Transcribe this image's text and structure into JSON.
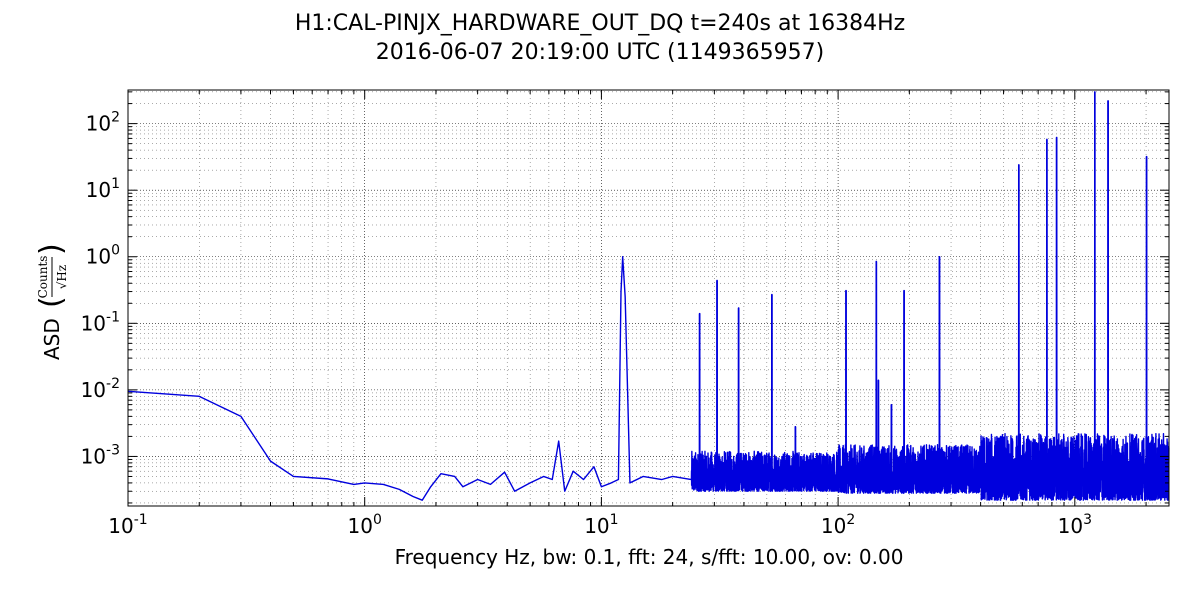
{
  "chart_data": {
    "type": "line",
    "title": "H1:CAL-PINJX_HARDWARE_OUT_DQ t=240s at 16384Hz",
    "subtitle": "2016-06-07 20:19:00 UTC (1149365957)",
    "xlabel": "Frequency Hz,  bw: 0.1, fft: 24, s/fft: 10.00, ov: 0.00",
    "ylabel": "ASD",
    "ylabel_unit_numerator": "Counts",
    "ylabel_unit_denominator": "√Hz",
    "xscale": "log",
    "yscale": "log",
    "xlim": [
      0.1,
      2500
    ],
    "ylim": [
      0.00018,
      320
    ],
    "grid": true,
    "x_ticks": [
      {
        "base": "10",
        "exp": "-1",
        "value": 0.1
      },
      {
        "base": "10",
        "exp": "0",
        "value": 1
      },
      {
        "base": "10",
        "exp": "1",
        "value": 10
      },
      {
        "base": "10",
        "exp": "2",
        "value": 100
      },
      {
        "base": "10",
        "exp": "3",
        "value": 1000
      }
    ],
    "y_ticks": [
      {
        "base": "10",
        "exp": "-3",
        "value": 0.001
      },
      {
        "base": "10",
        "exp": "-2",
        "value": 0.01
      },
      {
        "base": "10",
        "exp": "-1",
        "value": 0.1
      },
      {
        "base": "10",
        "exp": "0",
        "value": 1
      },
      {
        "base": "10",
        "exp": "1",
        "value": 10
      },
      {
        "base": "10",
        "exp": "2",
        "value": 100
      }
    ],
    "series": [
      {
        "color": "#0000dd",
        "baseline": [
          [
            0.1,
            0.0095
          ],
          [
            0.2,
            0.008
          ],
          [
            0.3,
            0.004
          ],
          [
            0.4,
            0.00085
          ],
          [
            0.5,
            0.0005
          ],
          [
            0.7,
            0.00046
          ],
          [
            0.9,
            0.00038
          ],
          [
            1.0,
            0.0004
          ],
          [
            1.2,
            0.00038
          ],
          [
            1.4,
            0.00032
          ],
          [
            1.6,
            0.00025
          ],
          [
            1.75,
            0.00022
          ],
          [
            1.9,
            0.00035
          ],
          [
            2.1,
            0.00055
          ],
          [
            2.4,
            0.0005
          ],
          [
            2.6,
            0.00035
          ],
          [
            3.0,
            0.00045
          ],
          [
            3.4,
            0.00038
          ],
          [
            3.9,
            0.00058
          ],
          [
            4.3,
            0.0003
          ],
          [
            5.0,
            0.0004
          ],
          [
            5.7,
            0.0005
          ],
          [
            6.2,
            0.00045
          ],
          [
            6.6,
            0.0017
          ],
          [
            7.0,
            0.0003
          ],
          [
            7.6,
            0.0006
          ],
          [
            8.4,
            0.00045
          ],
          [
            9.3,
            0.0007
          ],
          [
            10.0,
            0.00035
          ],
          [
            11.0,
            0.0004
          ],
          [
            11.8,
            0.00045
          ],
          [
            12.1,
            0.3
          ],
          [
            12.3,
            1.0
          ],
          [
            12.6,
            0.25
          ],
          [
            13.2,
            0.0004
          ],
          [
            15.0,
            0.0005
          ],
          [
            18.0,
            0.00045
          ],
          [
            20.0,
            0.0005
          ],
          [
            24.0,
            0.00045
          ]
        ],
        "noise_bands": [
          {
            "from": 24,
            "to": 100,
            "low": 0.0003,
            "high": 0.0012
          },
          {
            "from": 100,
            "to": 400,
            "low": 0.00028,
            "high": 0.0015
          },
          {
            "from": 400,
            "to": 2500,
            "low": 0.00022,
            "high": 0.0022
          }
        ],
        "peaks": [
          {
            "x": 12.3,
            "y": 1.0
          },
          {
            "x": 26.0,
            "y": 0.14
          },
          {
            "x": 30.8,
            "y": 0.44
          },
          {
            "x": 38.0,
            "y": 0.17
          },
          {
            "x": 52.5,
            "y": 0.27
          },
          {
            "x": 66.0,
            "y": 0.0028
          },
          {
            "x": 108.0,
            "y": 0.31
          },
          {
            "x": 145.0,
            "y": 0.85
          },
          {
            "x": 148.0,
            "y": 0.014
          },
          {
            "x": 168.0,
            "y": 0.006
          },
          {
            "x": 190.0,
            "y": 0.31
          },
          {
            "x": 268.0,
            "y": 1.0
          },
          {
            "x": 580.0,
            "y": 24
          },
          {
            "x": 762.0,
            "y": 58
          },
          {
            "x": 838.0,
            "y": 62
          },
          {
            "x": 1215.0,
            "y": 300
          },
          {
            "x": 1382.0,
            "y": 220
          },
          {
            "x": 2010.0,
            "y": 32
          }
        ]
      }
    ]
  }
}
